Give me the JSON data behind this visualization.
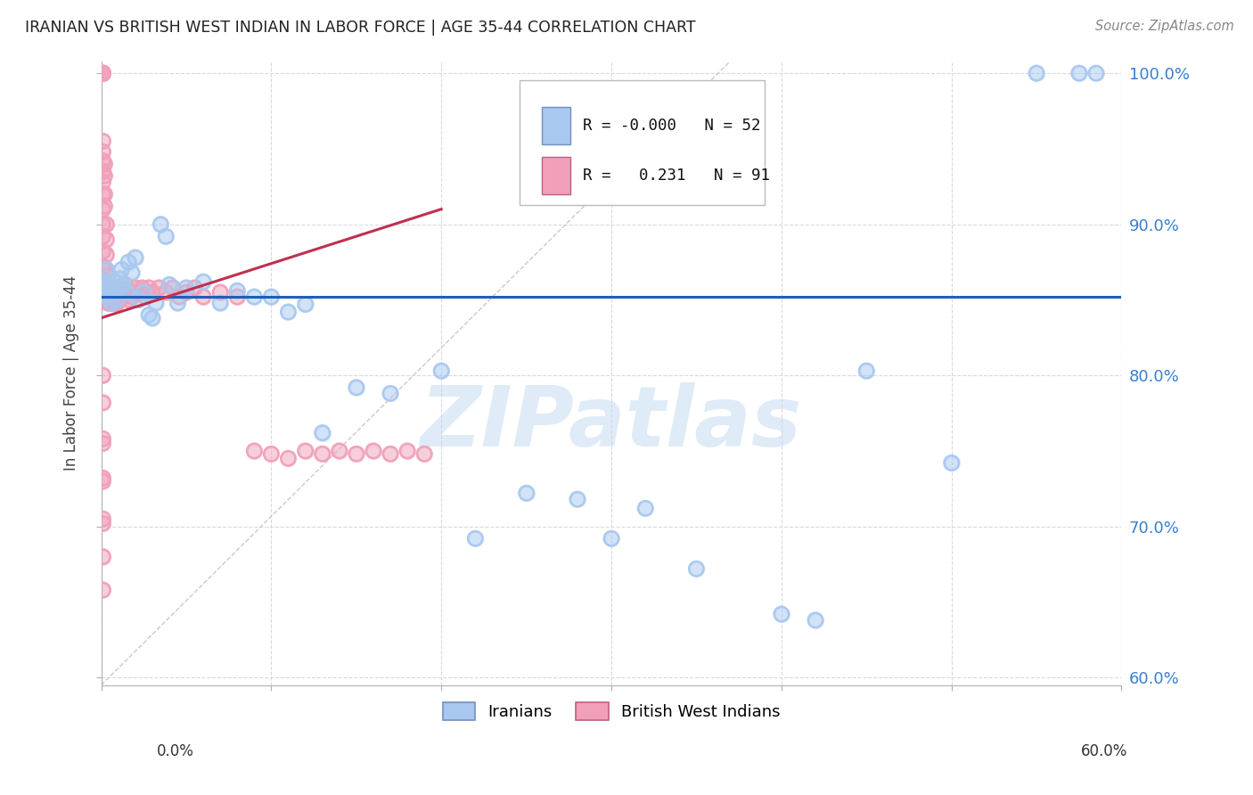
{
  "title": "IRANIAN VS BRITISH WEST INDIAN IN LABOR FORCE | AGE 35-44 CORRELATION CHART",
  "source": "Source: ZipAtlas.com",
  "ylabel": "In Labor Force | Age 35-44",
  "xmin": 0.0,
  "xmax": 0.6,
  "ymin": 0.595,
  "ymax": 1.008,
  "legend_blue_r": "-0.000",
  "legend_blue_n": "52",
  "legend_pink_r": "0.231",
  "legend_pink_n": "91",
  "blue_color": "#a8c8f0",
  "pink_color": "#f0a0b8",
  "trend_blue_color": "#1a5fbf",
  "trend_pink_color": "#c03050",
  "ref_line_color": "#c8c8d8",
  "grid_color": "#d8d8e4",
  "y_ticks": [
    0.6,
    0.7,
    0.8,
    0.9,
    1.0
  ],
  "x_ticks": [
    0.0,
    0.1,
    0.2,
    0.3,
    0.4,
    0.5,
    0.6
  ],
  "blue_x": [
    0.001,
    0.002,
    0.003,
    0.004,
    0.004,
    0.005,
    0.006,
    0.007,
    0.008,
    0.009,
    0.01,
    0.011,
    0.012,
    0.013,
    0.015,
    0.016,
    0.018,
    0.02,
    0.022,
    0.025,
    0.028,
    0.03,
    0.032,
    0.035,
    0.038,
    0.04,
    0.045,
    0.05,
    0.06,
    0.07,
    0.08,
    0.09,
    0.1,
    0.11,
    0.12,
    0.13,
    0.15,
    0.17,
    0.2,
    0.22,
    0.25,
    0.28,
    0.3,
    0.32,
    0.35,
    0.4,
    0.45,
    0.5,
    0.55,
    0.575,
    0.585,
    0.42
  ],
  "blue_y": [
    0.858,
    0.862,
    0.87,
    0.855,
    0.852,
    0.86,
    0.848,
    0.856,
    0.862,
    0.85,
    0.857,
    0.864,
    0.87,
    0.86,
    0.855,
    0.875,
    0.868,
    0.878,
    0.85,
    0.855,
    0.84,
    0.838,
    0.848,
    0.9,
    0.892,
    0.86,
    0.848,
    0.858,
    0.862,
    0.848,
    0.856,
    0.852,
    0.852,
    0.842,
    0.847,
    0.762,
    0.792,
    0.788,
    0.803,
    0.692,
    0.722,
    0.718,
    0.692,
    0.712,
    0.672,
    0.642,
    0.803,
    0.742,
    1.0,
    1.0,
    1.0,
    0.638
  ],
  "pink_x": [
    0.001,
    0.001,
    0.001,
    0.001,
    0.001,
    0.001,
    0.001,
    0.001,
    0.001,
    0.001,
    0.001,
    0.001,
    0.001,
    0.001,
    0.001,
    0.001,
    0.001,
    0.001,
    0.002,
    0.002,
    0.002,
    0.002,
    0.002,
    0.002,
    0.003,
    0.003,
    0.003,
    0.003,
    0.003,
    0.004,
    0.004,
    0.004,
    0.004,
    0.005,
    0.005,
    0.005,
    0.006,
    0.006,
    0.006,
    0.007,
    0.007,
    0.008,
    0.008,
    0.009,
    0.009,
    0.01,
    0.011,
    0.012,
    0.013,
    0.014,
    0.015,
    0.016,
    0.017,
    0.018,
    0.019,
    0.02,
    0.022,
    0.024,
    0.026,
    0.028,
    0.03,
    0.034,
    0.038,
    0.042,
    0.046,
    0.05,
    0.055,
    0.06,
    0.07,
    0.08,
    0.09,
    0.1,
    0.11,
    0.12,
    0.13,
    0.14,
    0.15,
    0.16,
    0.17,
    0.18,
    0.19,
    0.001,
    0.001,
    0.001,
    0.001,
    0.001,
    0.001,
    0.001,
    0.001,
    0.001,
    0.001
  ],
  "pink_y": [
    1.0,
    1.0,
    1.0,
    1.0,
    0.955,
    0.948,
    0.942,
    0.935,
    0.928,
    0.92,
    0.91,
    0.9,
    0.892,
    0.882,
    0.872,
    0.862,
    0.855,
    0.85,
    0.94,
    0.932,
    0.92,
    0.912,
    0.858,
    0.852,
    0.9,
    0.89,
    0.88,
    0.87,
    0.858,
    0.866,
    0.858,
    0.852,
    0.848,
    0.858,
    0.852,
    0.848,
    0.852,
    0.848,
    0.855,
    0.852,
    0.848,
    0.855,
    0.848,
    0.852,
    0.848,
    0.855,
    0.85,
    0.853,
    0.857,
    0.86,
    0.855,
    0.85,
    0.855,
    0.852,
    0.855,
    0.858,
    0.855,
    0.858,
    0.852,
    0.858,
    0.855,
    0.858,
    0.855,
    0.858,
    0.852,
    0.855,
    0.858,
    0.852,
    0.855,
    0.852,
    0.75,
    0.748,
    0.745,
    0.75,
    0.748,
    0.75,
    0.748,
    0.75,
    0.748,
    0.75,
    0.748,
    0.8,
    0.782,
    0.758,
    0.732,
    0.705,
    0.755,
    0.73,
    0.702,
    0.68,
    0.658
  ],
  "blue_trend_y": 0.852,
  "pink_trend_x0": 0.0,
  "pink_trend_y0": 0.838,
  "pink_trend_x1": 0.2,
  "pink_trend_y1": 0.91,
  "watermark_text": "ZIPatlas",
  "watermark_color": "#c0d8f0",
  "watermark_alpha": 0.5
}
